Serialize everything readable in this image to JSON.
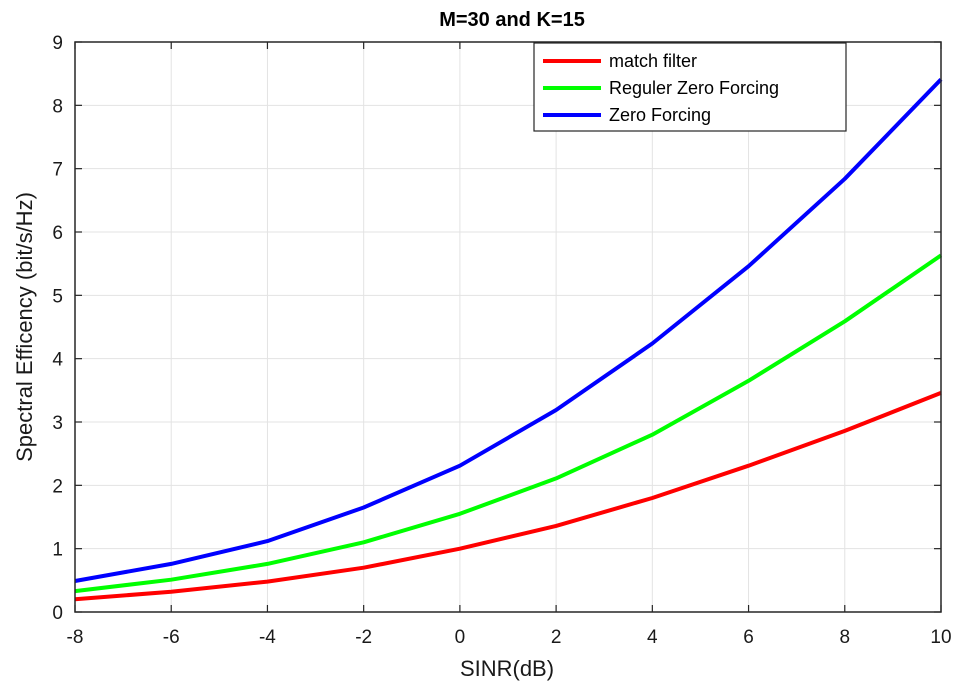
{
  "chart_data": {
    "type": "line",
    "title": "M=30 and K=15",
    "xlabel": "SINR(dB)",
    "ylabel": "Spectral Efficency (bit/s/Hz)",
    "xlim": [
      -8,
      10
    ],
    "ylim": [
      0,
      9
    ],
    "xticks": [
      "-8",
      "-6",
      "-4",
      "-2",
      "0",
      "2",
      "4",
      "6",
      "8",
      "10"
    ],
    "yticks": [
      "0",
      "1",
      "2",
      "3",
      "4",
      "5",
      "6",
      "7",
      "8",
      "9"
    ],
    "grid": true,
    "legend_position": "top-right",
    "x": [
      -8,
      -6,
      -4,
      -2,
      0,
      2,
      4,
      6,
      8,
      10
    ],
    "series": [
      {
        "name": "match filter",
        "color": "#ff0000",
        "values": [
          0.2,
          0.32,
          0.48,
          0.7,
          1.0,
          1.36,
          1.8,
          2.31,
          2.86,
          3.46
        ]
      },
      {
        "name": "Reguler Zero Forcing",
        "color": "#00ff00",
        "values": [
          0.33,
          0.51,
          0.76,
          1.1,
          1.55,
          2.11,
          2.8,
          3.65,
          4.59,
          5.63
        ]
      },
      {
        "name": "Zero Forcing",
        "color": "#0000ff",
        "values": [
          0.49,
          0.76,
          1.12,
          1.65,
          2.31,
          3.19,
          4.24,
          5.46,
          6.84,
          8.41
        ]
      }
    ]
  }
}
